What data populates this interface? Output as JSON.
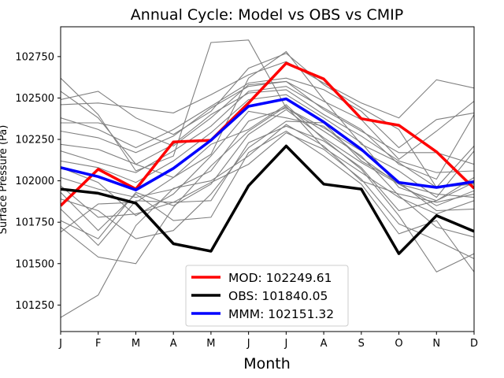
{
  "chart_data": {
    "type": "line",
    "title": "Annual Cycle: Model vs OBS vs CMIP",
    "xlabel": "Month",
    "ylabel": "Surface Pressure (Pa)",
    "categories": [
      "J",
      "F",
      "M",
      "A",
      "M",
      "J",
      "J",
      "A",
      "S",
      "O",
      "N",
      "D"
    ],
    "ylim": [
      101090,
      102930
    ],
    "yticks": [
      101250,
      101500,
      101750,
      102000,
      102250,
      102500,
      102750
    ],
    "legend_position": "lower-center",
    "colors": {
      "mod": "#ff0000",
      "obs": "#000000",
      "mmm": "#0000ff",
      "ensemble": "#808080"
    },
    "series": [
      {
        "name": "MOD",
        "legend": "MOD: 102249.61",
        "color": "#ff0000",
        "values": [
          101850,
          102070,
          101950,
          102235,
          102245,
          102470,
          102710,
          102615,
          102375,
          102335,
          102175,
          101955
        ]
      },
      {
        "name": "OBS",
        "legend": "OBS: 101840.05",
        "color": "#000000",
        "values": [
          101950,
          101925,
          101865,
          101620,
          101575,
          101970,
          102210,
          101980,
          101950,
          101560,
          101790,
          101695
        ]
      },
      {
        "name": "MMM",
        "legend": "MMM: 102151.32",
        "color": "#0000ff",
        "values": [
          102080,
          102025,
          101945,
          102075,
          102245,
          102450,
          102495,
          102355,
          102190,
          101990,
          101960,
          101995
        ]
      }
    ],
    "ensemble": [
      [
        101175,
        101310,
        101730,
        101955,
        102000,
        102150,
        102340,
        102210,
        102000,
        101920,
        101870,
        101920
      ],
      [
        102620,
        102400,
        102060,
        102150,
        102835,
        102850,
        102440,
        102300,
        102150,
        101910,
        101720,
        101660
      ],
      [
        102540,
        102380,
        102100,
        102020,
        102160,
        102620,
        102780,
        102490,
        102220,
        102110,
        101960,
        102210
      ],
      [
        102490,
        102540,
        102380,
        102280,
        102420,
        102680,
        102770,
        102580,
        102440,
        102310,
        101960,
        101980
      ],
      [
        102460,
        102470,
        102440,
        102410,
        102520,
        102640,
        102720,
        102590,
        102470,
        102380,
        102610,
        102560
      ],
      [
        102380,
        102310,
        102200,
        102310,
        102450,
        102590,
        102620,
        102550,
        102420,
        102200,
        102370,
        102410
      ],
      [
        102350,
        102350,
        102300,
        102210,
        102380,
        102580,
        102600,
        102480,
        102370,
        102130,
        102300,
        102480
      ],
      [
        102180,
        102110,
        102050,
        102180,
        102330,
        102540,
        102570,
        102440,
        102310,
        102100,
        102010,
        102400
      ],
      [
        102120,
        102080,
        101990,
        102120,
        102290,
        102490,
        102520,
        102380,
        102230,
        101960,
        101880,
        102020
      ],
      [
        102020,
        101950,
        101900,
        101950,
        102060,
        102360,
        102440,
        102320,
        102180,
        102060,
        101900,
        102180
      ],
      [
        101970,
        101780,
        101800,
        101870,
        101880,
        102230,
        102330,
        102240,
        102080,
        101820,
        101880,
        101990
      ],
      [
        101930,
        101700,
        101920,
        101760,
        101780,
        102170,
        102300,
        102150,
        101980,
        101680,
        101760,
        101450
      ],
      [
        101830,
        101610,
        101880,
        101870,
        101990,
        102100,
        102290,
        102190,
        102010,
        101740,
        101640,
        101530
      ],
      [
        101760,
        101650,
        101930,
        101850,
        101980,
        102280,
        102430,
        102260,
        102110,
        101980,
        101850,
        101940
      ],
      [
        101720,
        101540,
        101500,
        101840,
        102090,
        102300,
        102450,
        102200,
        102050,
        101900,
        101800,
        101880
      ],
      [
        101690,
        101860,
        101870,
        102020,
        102220,
        102310,
        102460,
        102250,
        102070,
        101790,
        101450,
        101560
      ],
      [
        102080,
        101990,
        101790,
        101920,
        102150,
        102420,
        102380,
        102330,
        102140,
        101980,
        101920,
        101900
      ],
      [
        101890,
        101820,
        101650,
        101700,
        101920,
        102200,
        102360,
        102350,
        102120,
        101990,
        101820,
        101830
      ],
      [
        102220,
        102190,
        102100,
        102220,
        102400,
        102530,
        102550,
        102400,
        102270,
        102120,
        102050,
        102060
      ],
      [
        102300,
        102260,
        102170,
        102270,
        102440,
        102570,
        102600,
        102430,
        102300,
        102170,
        102170,
        102100
      ]
    ]
  }
}
